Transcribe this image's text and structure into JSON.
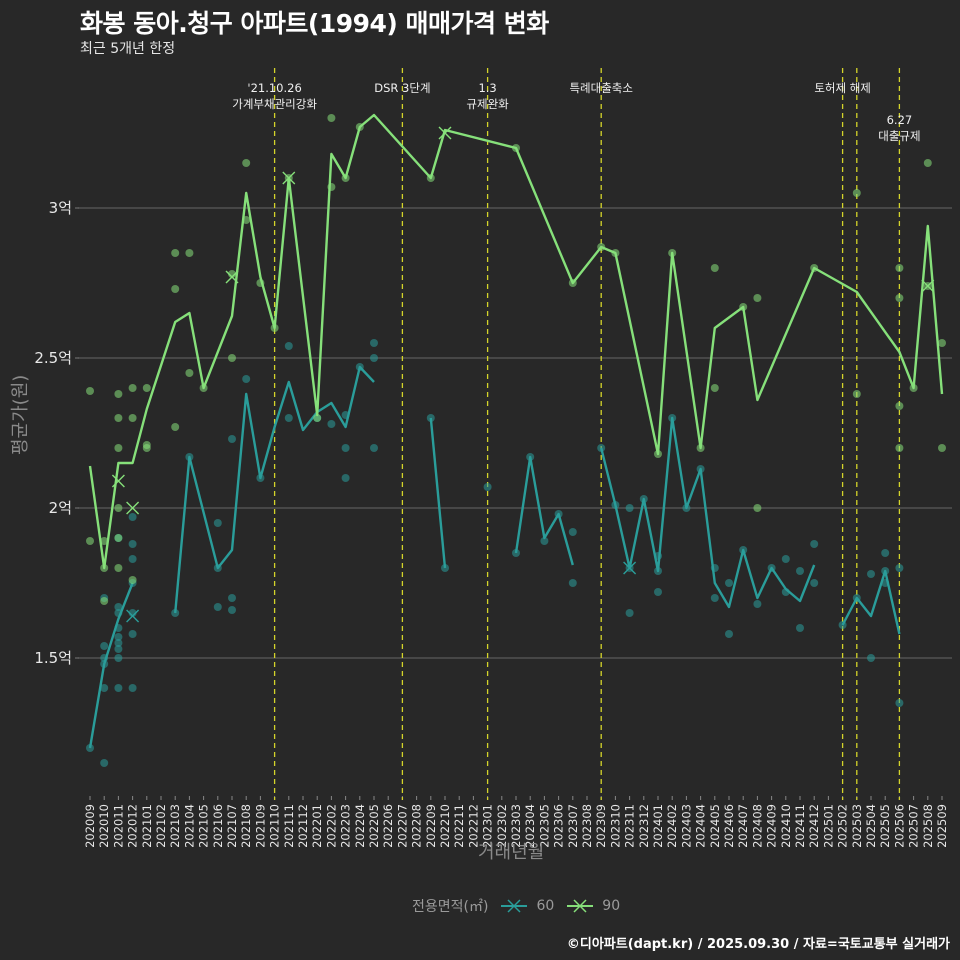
{
  "header": {
    "title": "화봉 동아.청구 아파트(1994) 매매가격 변화",
    "subtitle": "최근 5개년 한정"
  },
  "footer": {
    "credit": "©디아파트(dapt.kr) / 2025.09.30 / 자료=국토교통부 실거래가"
  },
  "colors": {
    "background": "#282828",
    "series_60": "#2a9d9a",
    "series_90": "#86e07a",
    "event_line": "#d4d42a",
    "grid": "#5a5a5a"
  },
  "chart_data": {
    "type": "line",
    "title": "화봉 동아.청구 아파트(1994) 매매가격 변화",
    "subtitle": "최근 5개년 한정",
    "xlabel": "거래년월",
    "ylabel": "평균가(원)",
    "ylim": [
      1.05,
      3.45
    ],
    "yticks": [
      {
        "value": 1.5,
        "label": "1.5억"
      },
      {
        "value": 2.0,
        "label": "2억"
      },
      {
        "value": 2.5,
        "label": "2.5억"
      },
      {
        "value": 3.0,
        "label": "3억"
      }
    ],
    "grid": true,
    "legend": {
      "title": "전용면적(㎡)",
      "position": "bottom",
      "entries": [
        "60",
        "90"
      ]
    },
    "x": [
      "202009",
      "202010",
      "202011",
      "202012",
      "202101",
      "202102",
      "202103",
      "202104",
      "202105",
      "202106",
      "202107",
      "202108",
      "202109",
      "202110",
      "202111",
      "202112",
      "202201",
      "202202",
      "202203",
      "202204",
      "202205",
      "202206",
      "202207",
      "202208",
      "202209",
      "202210",
      "202211",
      "202212",
      "202301",
      "202302",
      "202303",
      "202304",
      "202305",
      "202306",
      "202307",
      "202308",
      "202309",
      "202310",
      "202311",
      "202312",
      "202401",
      "202402",
      "202403",
      "202404",
      "202405",
      "202406",
      "202407",
      "202408",
      "202409",
      "202410",
      "202411",
      "202412",
      "202501",
      "202502",
      "202503",
      "202504",
      "202505",
      "202506",
      "202507",
      "202508",
      "202509"
    ],
    "series": [
      {
        "name": "60",
        "line": [
          [
            0,
            1.2
          ],
          [
            1,
            1.48
          ],
          [
            2,
            1.63
          ],
          [
            3,
            1.75
          ],
          null,
          [
            6,
            1.65
          ],
          [
            7,
            2.17
          ],
          [
            9,
            1.8
          ],
          [
            10,
            1.86
          ],
          [
            11,
            2.38
          ],
          [
            12,
            2.1
          ],
          [
            13,
            2.27
          ],
          [
            14,
            2.42
          ],
          [
            15,
            2.26
          ],
          [
            16,
            2.32
          ],
          [
            17,
            2.35
          ],
          [
            18,
            2.27
          ],
          [
            19,
            2.47
          ],
          [
            20,
            2.42
          ],
          null,
          [
            24,
            2.3
          ],
          [
            25,
            1.8
          ],
          null,
          [
            30,
            1.85
          ],
          [
            31,
            2.17
          ],
          [
            32,
            1.9
          ],
          [
            33,
            1.98
          ],
          [
            34,
            1.81
          ],
          null,
          [
            36,
            2.2
          ],
          [
            37,
            2.01
          ],
          [
            38,
            1.8
          ],
          [
            39,
            2.03
          ],
          [
            40,
            1.79
          ],
          [
            41,
            2.3
          ],
          [
            42,
            2.0
          ],
          [
            43,
            2.13
          ],
          [
            44,
            1.75
          ],
          [
            45,
            1.67
          ],
          [
            46,
            1.86
          ],
          [
            47,
            1.7
          ],
          [
            48,
            1.8
          ],
          [
            49,
            1.73
          ],
          [
            50,
            1.69
          ],
          [
            51,
            1.81
          ],
          null,
          [
            53,
            1.61
          ],
          [
            54,
            1.7
          ],
          [
            55,
            1.64
          ],
          [
            56,
            1.79
          ],
          [
            57,
            1.58
          ]
        ],
        "points": [
          [
            0,
            1.2
          ],
          [
            1,
            1.15
          ],
          [
            1,
            1.4
          ],
          [
            1,
            1.48
          ],
          [
            1,
            1.5
          ],
          [
            1,
            1.54
          ],
          [
            1,
            1.7
          ],
          [
            2,
            1.4
          ],
          [
            2,
            1.5
          ],
          [
            2,
            1.53
          ],
          [
            2,
            1.55
          ],
          [
            2,
            1.57
          ],
          [
            2,
            1.6
          ],
          [
            2,
            1.65
          ],
          [
            2,
            1.67
          ],
          [
            2,
            1.9
          ],
          [
            3,
            1.4
          ],
          [
            3,
            1.58
          ],
          [
            3,
            1.65
          ],
          [
            3,
            1.75
          ],
          [
            3,
            1.83
          ],
          [
            3,
            1.88
          ],
          [
            3,
            1.97
          ],
          [
            6,
            1.65
          ],
          [
            7,
            2.17
          ],
          [
            9,
            1.67
          ],
          [
            9,
            1.8
          ],
          [
            9,
            1.95
          ],
          [
            10,
            1.66
          ],
          [
            10,
            1.7
          ],
          [
            10,
            2.23
          ],
          [
            11,
            2.43
          ],
          [
            12,
            2.1
          ],
          [
            14,
            2.3
          ],
          [
            14,
            2.54
          ],
          [
            16,
            2.3
          ],
          [
            17,
            2.28
          ],
          [
            18,
            2.1
          ],
          [
            18,
            2.2
          ],
          [
            18,
            2.31
          ],
          [
            19,
            2.47
          ],
          [
            20,
            2.2
          ],
          [
            20,
            2.5
          ],
          [
            20,
            2.55
          ],
          [
            24,
            2.3
          ],
          [
            25,
            1.8
          ],
          [
            28,
            2.07
          ],
          [
            30,
            1.85
          ],
          [
            31,
            2.17
          ],
          [
            32,
            1.89
          ],
          [
            33,
            1.98
          ],
          [
            34,
            1.75
          ],
          [
            34,
            1.92
          ],
          [
            36,
            2.2
          ],
          [
            37,
            2.01
          ],
          [
            38,
            1.65
          ],
          [
            38,
            1.8
          ],
          [
            38,
            2.0
          ],
          [
            39,
            2.03
          ],
          [
            40,
            1.72
          ],
          [
            40,
            1.79
          ],
          [
            40,
            1.84
          ],
          [
            41,
            2.3
          ],
          [
            42,
            2.0
          ],
          [
            43,
            2.13
          ],
          [
            44,
            1.7
          ],
          [
            44,
            1.8
          ],
          [
            45,
            1.58
          ],
          [
            45,
            1.75
          ],
          [
            46,
            1.86
          ],
          [
            47,
            1.68
          ],
          [
            48,
            1.8
          ],
          [
            49,
            1.72
          ],
          [
            49,
            1.83
          ],
          [
            50,
            1.6
          ],
          [
            50,
            1.79
          ],
          [
            51,
            1.75
          ],
          [
            51,
            1.88
          ],
          [
            53,
            1.61
          ],
          [
            54,
            1.7
          ],
          [
            55,
            1.5
          ],
          [
            55,
            1.78
          ],
          [
            56,
            1.75
          ],
          [
            56,
            1.79
          ],
          [
            56,
            1.85
          ],
          [
            57,
            1.35
          ],
          [
            57,
            1.8
          ]
        ],
        "markers_x": [
          [
            3,
            1.64
          ],
          [
            38,
            1.8
          ]
        ]
      },
      {
        "name": "90",
        "line": [
          [
            0,
            2.14
          ],
          [
            1,
            1.8
          ],
          [
            2,
            2.15
          ],
          [
            3,
            2.15
          ],
          [
            4,
            2.33
          ],
          [
            6,
            2.62
          ],
          [
            7,
            2.65
          ],
          [
            8,
            2.4
          ],
          [
            10,
            2.64
          ],
          [
            11,
            3.05
          ],
          [
            12,
            2.77
          ],
          [
            13,
            2.6
          ],
          [
            14,
            3.1
          ],
          [
            16,
            2.31
          ],
          [
            17,
            3.18
          ],
          [
            18,
            3.1
          ],
          [
            19,
            3.27
          ],
          [
            20,
            3.31
          ],
          [
            24,
            3.1
          ],
          [
            25,
            3.26
          ],
          [
            30,
            3.2
          ],
          [
            34,
            2.75
          ],
          [
            36,
            2.87
          ],
          [
            37,
            2.85
          ],
          [
            40,
            2.18
          ],
          [
            41,
            2.85
          ],
          [
            43,
            2.2
          ],
          [
            44,
            2.6
          ],
          [
            46,
            2.67
          ],
          [
            47,
            2.36
          ],
          [
            51,
            2.8
          ],
          [
            54,
            2.72
          ],
          [
            57,
            2.52
          ],
          [
            58,
            2.4
          ],
          [
            59,
            2.94
          ],
          [
            60,
            2.38
          ]
        ],
        "points": [
          [
            0,
            1.89
          ],
          [
            0,
            2.39
          ],
          [
            1,
            1.69
          ],
          [
            1,
            1.8
          ],
          [
            1,
            1.89
          ],
          [
            2,
            2.0
          ],
          [
            2,
            2.2
          ],
          [
            2,
            2.3
          ],
          [
            2,
            2.38
          ],
          [
            2,
            1.9
          ],
          [
            2,
            1.8
          ],
          [
            3,
            2.3
          ],
          [
            3,
            2.4
          ],
          [
            3,
            1.76
          ],
          [
            4,
            2.2
          ],
          [
            4,
            2.21
          ],
          [
            4,
            2.4
          ],
          [
            6,
            2.27
          ],
          [
            6,
            2.73
          ],
          [
            6,
            2.85
          ],
          [
            7,
            2.45
          ],
          [
            7,
            2.85
          ],
          [
            8,
            2.4
          ],
          [
            10,
            2.5
          ],
          [
            10,
            2.78
          ],
          [
            11,
            2.96
          ],
          [
            11,
            3.15
          ],
          [
            12,
            2.75
          ],
          [
            13,
            2.6
          ],
          [
            14,
            3.1
          ],
          [
            16,
            2.3
          ],
          [
            17,
            3.07
          ],
          [
            17,
            3.3
          ],
          [
            18,
            3.1
          ],
          [
            19,
            3.27
          ],
          [
            24,
            3.1
          ],
          [
            30,
            3.2
          ],
          [
            34,
            2.75
          ],
          [
            36,
            2.87
          ],
          [
            37,
            2.85
          ],
          [
            40,
            2.18
          ],
          [
            41,
            2.85
          ],
          [
            43,
            2.2
          ],
          [
            44,
            2.4
          ],
          [
            44,
            2.8
          ],
          [
            46,
            2.67
          ],
          [
            47,
            2.7
          ],
          [
            47,
            2.0
          ],
          [
            51,
            2.8
          ],
          [
            54,
            2.38
          ],
          [
            54,
            3.05
          ],
          [
            57,
            2.2
          ],
          [
            57,
            2.34
          ],
          [
            57,
            2.7
          ],
          [
            57,
            2.8
          ],
          [
            58,
            2.4
          ],
          [
            59,
            3.15
          ],
          [
            59,
            2.74
          ],
          [
            60,
            2.55
          ],
          [
            60,
            2.2
          ]
        ],
        "markers_x": [
          [
            2,
            2.09
          ],
          [
            3,
            2.0
          ],
          [
            10,
            2.77
          ],
          [
            14,
            3.1
          ],
          [
            25,
            3.25
          ],
          [
            59,
            2.74
          ]
        ]
      }
    ],
    "events": [
      {
        "month_index": 13,
        "label_lines": [
          "'21.10.26",
          "가계부채관리강화"
        ]
      },
      {
        "month_index": 22,
        "label_lines": [
          "DSR 3단계"
        ]
      },
      {
        "month_index": 28,
        "label_lines": [
          "1.3",
          "규제완화"
        ]
      },
      {
        "month_index": 36,
        "label_lines": [
          "특례대출축소"
        ]
      },
      {
        "month_index": 53,
        "label_lines": [
          "토허제 해제"
        ]
      },
      {
        "month_index": 54,
        "label_lines": []
      },
      {
        "month_index": 57,
        "label_lines": [
          "6.27",
          "대출규제"
        ]
      }
    ]
  }
}
